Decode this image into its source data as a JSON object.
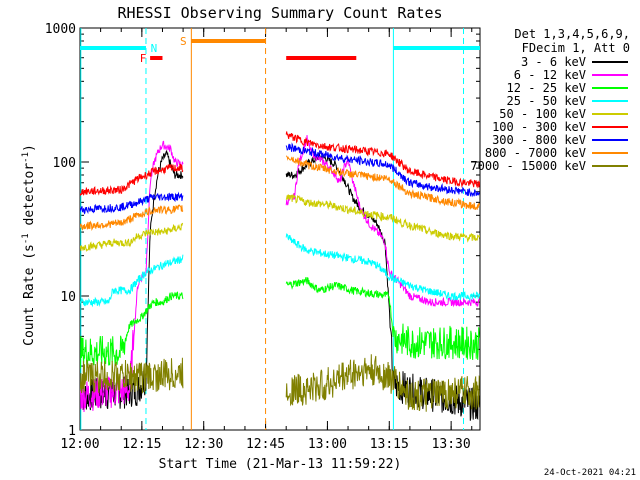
{
  "chart_data": {
    "type": "line",
    "title": "RHESSI Observing Summary Count Rates",
    "xlabel": "Start Time (21-Mar-13 11:59:22)",
    "ylabel_main": "Count Rate (s",
    "ylabel_sup1": "-1",
    "ylabel_mid": " detector",
    "ylabel_sup2": "-1",
    "ylabel_end": ")",
    "yscale": "log",
    "ylim": [
      1,
      1000
    ],
    "xlim_min": [
      0,
      97
    ],
    "x_ticks": [
      {
        "t": 0,
        "label": "12:00"
      },
      {
        "t": 15,
        "label": "12:15"
      },
      {
        "t": 30,
        "label": "12:30"
      },
      {
        "t": 45,
        "label": "12:45"
      },
      {
        "t": 60,
        "label": "13:00"
      },
      {
        "t": 75,
        "label": "13:15"
      },
      {
        "t": 90,
        "label": "13:30"
      }
    ],
    "y_ticks": [
      {
        "v": 1,
        "label": "1"
      },
      {
        "v": 10,
        "label": "10"
      },
      {
        "v": 100,
        "label": "100"
      },
      {
        "v": 1000,
        "label": "1000"
      }
    ],
    "legend": {
      "placement": "right",
      "header": [
        "Det 1,3,4,5,6,9,",
        "FDecim 1, Att 0"
      ]
    },
    "series": [
      {
        "name": "3 - 6 keV",
        "color": "#000000",
        "points": [
          [
            0,
            1.8
          ],
          [
            10,
            1.9
          ],
          [
            14,
            2.0
          ],
          [
            16,
            2.5
          ],
          [
            17,
            30
          ],
          [
            18,
            55
          ],
          [
            19,
            85
          ],
          [
            20,
            105
          ],
          [
            21,
            115
          ],
          [
            22,
            95
          ],
          [
            23,
            80
          ],
          [
            25,
            80
          ]
        ],
        "points2": [
          [
            50,
            80
          ],
          [
            52,
            80
          ],
          [
            54,
            90
          ],
          [
            56,
            100
          ],
          [
            58,
            110
          ],
          [
            60,
            105
          ],
          [
            62,
            95
          ],
          [
            64,
            75
          ],
          [
            66,
            55
          ],
          [
            68,
            45
          ],
          [
            70,
            40
          ],
          [
            72,
            35
          ],
          [
            74,
            25
          ],
          [
            75,
            8
          ],
          [
            76,
            2.2
          ],
          [
            80,
            2.0
          ],
          [
            97,
            1.5
          ]
        ]
      },
      {
        "name": "6 - 12 keV",
        "color": "#ff00ff",
        "points": [
          [
            0,
            1.8
          ],
          [
            12,
            2.0
          ],
          [
            14,
            12
          ],
          [
            15,
            14
          ],
          [
            16,
            15
          ],
          [
            17,
            70
          ],
          [
            18,
            100
          ],
          [
            19,
            120
          ],
          [
            20,
            135
          ],
          [
            21,
            130
          ],
          [
            22,
            125
          ],
          [
            23,
            100
          ],
          [
            25,
            95
          ]
        ],
        "points2": [
          [
            50,
            50
          ],
          [
            52,
            55
          ],
          [
            53,
            95
          ],
          [
            55,
            150
          ],
          [
            56,
            120
          ],
          [
            58,
            105
          ],
          [
            60,
            95
          ],
          [
            62,
            80
          ],
          [
            63,
            70
          ],
          [
            64,
            90
          ],
          [
            65,
            105
          ],
          [
            66,
            75
          ],
          [
            68,
            45
          ],
          [
            70,
            35
          ],
          [
            72,
            30
          ],
          [
            73,
            28
          ],
          [
            74,
            25
          ],
          [
            75,
            15
          ],
          [
            77,
            13
          ],
          [
            79,
            11
          ],
          [
            80,
            10
          ],
          [
            85,
            9
          ],
          [
            97,
            9
          ]
        ]
      },
      {
        "name": "12 - 25 keV",
        "color": "#00ff00",
        "points": [
          [
            0,
            3.8
          ],
          [
            10,
            3.8
          ],
          [
            12,
            6
          ],
          [
            15,
            7
          ],
          [
            17,
            8.5
          ],
          [
            18,
            9
          ],
          [
            20,
            9
          ],
          [
            22,
            10
          ],
          [
            25,
            10
          ]
        ],
        "points2": [
          [
            50,
            12
          ],
          [
            55,
            13
          ],
          [
            58,
            11
          ],
          [
            62,
            12
          ],
          [
            66,
            11
          ],
          [
            70,
            10.5
          ],
          [
            75,
            10
          ],
          [
            76,
            5
          ],
          [
            80,
            4.5
          ],
          [
            85,
            4.5
          ],
          [
            90,
            4.5
          ],
          [
            97,
            4.4
          ]
        ]
      },
      {
        "name": "25 - 50 keV",
        "color": "#00ffff",
        "points": [
          [
            0,
            9
          ],
          [
            7,
            9
          ],
          [
            8,
            11
          ],
          [
            12,
            11
          ],
          [
            14,
            13
          ],
          [
            16,
            15
          ],
          [
            20,
            17
          ],
          [
            25,
            19
          ]
        ],
        "points2": [
          [
            50,
            28
          ],
          [
            52,
            25
          ],
          [
            55,
            22
          ],
          [
            58,
            21
          ],
          [
            62,
            20
          ],
          [
            66,
            19
          ],
          [
            70,
            18
          ],
          [
            72,
            17
          ],
          [
            75,
            14
          ],
          [
            77,
            13
          ],
          [
            80,
            12
          ],
          [
            84,
            11
          ],
          [
            90,
            10
          ],
          [
            97,
            10
          ]
        ]
      },
      {
        "name": "50 - 100 keV",
        "color": "#cccc00",
        "points": [
          [
            0,
            23
          ],
          [
            5,
            24
          ],
          [
            8,
            25
          ],
          [
            12,
            25
          ],
          [
            14,
            28
          ],
          [
            17,
            30
          ],
          [
            20,
            30
          ],
          [
            25,
            33
          ]
        ],
        "points2": [
          [
            50,
            55
          ],
          [
            55,
            50
          ],
          [
            60,
            48
          ],
          [
            64,
            45
          ],
          [
            68,
            42
          ],
          [
            72,
            40
          ],
          [
            76,
            38
          ],
          [
            78,
            35
          ],
          [
            81,
            33
          ],
          [
            85,
            30
          ],
          [
            90,
            28
          ],
          [
            97,
            27
          ]
        ]
      },
      {
        "name": "100 - 300 keV",
        "color": "#ff0000",
        "points": [
          [
            0,
            60
          ],
          [
            10,
            62
          ],
          [
            14,
            75
          ],
          [
            18,
            85
          ],
          [
            22,
            90
          ],
          [
            25,
            90
          ]
        ],
        "points2": [
          [
            50,
            160
          ],
          [
            55,
            140
          ],
          [
            60,
            130
          ],
          [
            65,
            125
          ],
          [
            70,
            120
          ],
          [
            75,
            115
          ],
          [
            80,
            85
          ],
          [
            85,
            78
          ],
          [
            90,
            72
          ],
          [
            97,
            68
          ]
        ]
      },
      {
        "name": "300 - 800 keV",
        "color": "#0000ff",
        "points": [
          [
            0,
            44
          ],
          [
            10,
            46
          ],
          [
            14,
            50
          ],
          [
            18,
            55
          ],
          [
            22,
            55
          ],
          [
            25,
            55
          ]
        ],
        "points2": [
          [
            50,
            130
          ],
          [
            55,
            120
          ],
          [
            60,
            112
          ],
          [
            65,
            105
          ],
          [
            70,
            100
          ],
          [
            75,
            95
          ],
          [
            80,
            70
          ],
          [
            85,
            65
          ],
          [
            90,
            62
          ],
          [
            97,
            58
          ]
        ]
      },
      {
        "name": "800 - 7000 keV",
        "color": "#ff8800",
        "points": [
          [
            0,
            33
          ],
          [
            10,
            35
          ],
          [
            14,
            40
          ],
          [
            18,
            44
          ],
          [
            22,
            44
          ],
          [
            25,
            45
          ]
        ],
        "points2": [
          [
            50,
            110
          ],
          [
            55,
            95
          ],
          [
            60,
            88
          ],
          [
            65,
            82
          ],
          [
            70,
            78
          ],
          [
            75,
            75
          ],
          [
            80,
            58
          ],
          [
            85,
            54
          ],
          [
            90,
            50
          ],
          [
            97,
            46
          ]
        ]
      },
      {
        "name": "7000 - 15000 keV",
        "color": "#808000",
        "points": [
          [
            0,
            2.5
          ],
          [
            10,
            2.5
          ],
          [
            14,
            2.5
          ],
          [
            18,
            2.5
          ],
          [
            22,
            2.6
          ],
          [
            25,
            2.6
          ]
        ],
        "points2": [
          [
            50,
            2.0
          ],
          [
            55,
            2.0
          ],
          [
            60,
            2.2
          ],
          [
            65,
            2.6
          ],
          [
            70,
            2.8
          ],
          [
            75,
            2.5
          ],
          [
            80,
            1.8
          ],
          [
            85,
            1.8
          ],
          [
            90,
            1.9
          ],
          [
            97,
            1.9
          ]
        ]
      }
    ],
    "bars": [
      {
        "label": "N",
        "color": "#00ffff",
        "segments": [
          [
            0,
            16
          ],
          [
            76,
            97
          ]
        ]
      },
      {
        "label": "S",
        "color": "#ff8800",
        "segments": [
          [
            27,
            45
          ]
        ]
      },
      {
        "label": "F",
        "color": "#ff0000",
        "segments": [
          [
            17,
            20
          ],
          [
            50,
            67
          ]
        ]
      }
    ],
    "vlines": [
      {
        "t": 16,
        "color": "#00ffff",
        "style": "dash"
      },
      {
        "t": 76,
        "color": "#00ffff",
        "style": "solid"
      },
      {
        "t": 93,
        "color": "#00ffff",
        "style": "dash"
      },
      {
        "t": 27,
        "color": "#ff8800",
        "style": "solid"
      },
      {
        "t": 45,
        "color": "#ff8800",
        "style": "dash"
      },
      {
        "t": 0.2,
        "color": "#00ffff",
        "style": "solid"
      }
    ]
  },
  "footer": {
    "timestamp": "24-Oct-2021 04:21"
  }
}
